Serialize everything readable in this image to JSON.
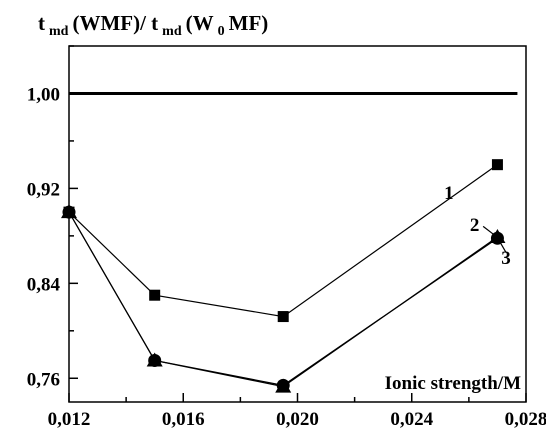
{
  "chart_data": {
    "type": "line",
    "title": "",
    "ylabel": {
      "main": "t",
      "sub1": "md",
      "mid": "(WMF)/ t",
      "sub2": "md",
      "mid2": " (W",
      "sub3": "0",
      "tail": "MF)"
    },
    "xlabel": "Ionic strength/M",
    "xlim": [
      0.012,
      0.028
    ],
    "ylim": [
      0.74,
      1.04
    ],
    "xticks": [
      0.012,
      0.016,
      0.02,
      0.024,
      0.028
    ],
    "xtick_labels": [
      "0,012",
      "0,016",
      "0,020",
      "0,024",
      "0,028"
    ],
    "yticks": [
      0.76,
      0.84,
      0.92,
      1.0
    ],
    "ytick_labels": [
      "0,76",
      "0,84",
      "0,92",
      "1,00"
    ],
    "reference_line": {
      "y": 1.0
    },
    "grid": false,
    "series": [
      {
        "name": "1",
        "marker": "square",
        "x": [
          0.012,
          0.015,
          0.0195,
          0.027
        ],
        "y": [
          0.9,
          0.83,
          0.812,
          0.94
        ]
      },
      {
        "name": "2",
        "marker": "circle",
        "x": [
          0.012,
          0.015,
          0.0195,
          0.027
        ],
        "y": [
          0.9,
          0.775,
          0.754,
          0.878
        ]
      },
      {
        "name": "3",
        "marker": "triangle",
        "x": [
          0.012,
          0.015,
          0.0195,
          0.027
        ],
        "y": [
          0.9,
          0.775,
          0.753,
          0.879
        ]
      }
    ],
    "annotations": [
      {
        "text": "1",
        "x": 0.0253,
        "y": 0.917
      },
      {
        "text": "2",
        "x": 0.0262,
        "y": 0.89
      },
      {
        "text": "3",
        "x": 0.0273,
        "y": 0.862
      }
    ]
  }
}
